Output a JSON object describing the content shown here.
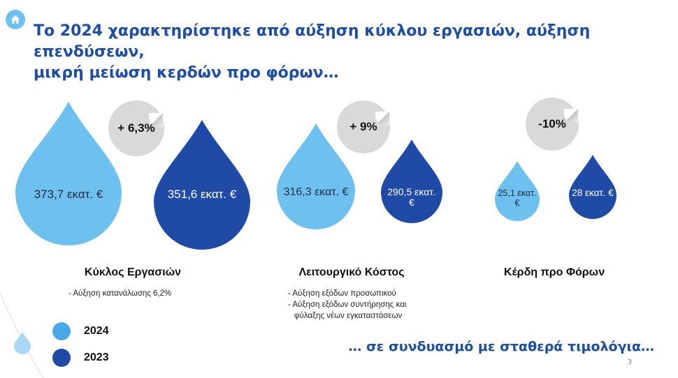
{
  "title": {
    "line1": "Το 2024 χαρακτηρίστηκε από αύξηση κύκλου εργασιών, αύξηση επενδύσεων,",
    "line2": "μικρή μείωση κερδών προ φόρων…"
  },
  "colors": {
    "y2024": "#6ec1ef",
    "y2023": "#1f4aa5",
    "badge": "#d9d9d9",
    "accent": "#1e4ea1"
  },
  "groups": [
    {
      "title": "Κύκλος Εργασιών",
      "change": "+ 6,3%",
      "value_2024": "373,7 εκατ. €",
      "value_2023": "351,6 εκατ. €",
      "bullets": [
        "- Αύξηση κατανάλωσης 6,2%"
      ]
    },
    {
      "title": "Λειτουργικό Κόστος",
      "change": "+ 9%",
      "value_2024": "316,3 εκατ. €",
      "value_2023": "290,5 εκατ. €",
      "bullets": [
        "- Αύξηση εξόδων προσωπικού",
        "- Αύξηση εξόδων συντήρησης και",
        "  φύλαξης νέων εγκαταστάσεων"
      ]
    },
    {
      "title": "Κέρδη προ Φόρων",
      "change": "-10%",
      "value_2024": "25,1 εκατ. €",
      "value_2023": "28 εκατ. €",
      "bullets": []
    }
  ],
  "legend": [
    {
      "label": "2024",
      "color": "#4aa8e8"
    },
    {
      "label": "2023",
      "color": "#1f4aa5"
    }
  ],
  "footer": "… σε συνδυασμό με σταθερά τιμολόγια…",
  "page_number": "3",
  "icons": {
    "home": "home-icon"
  }
}
